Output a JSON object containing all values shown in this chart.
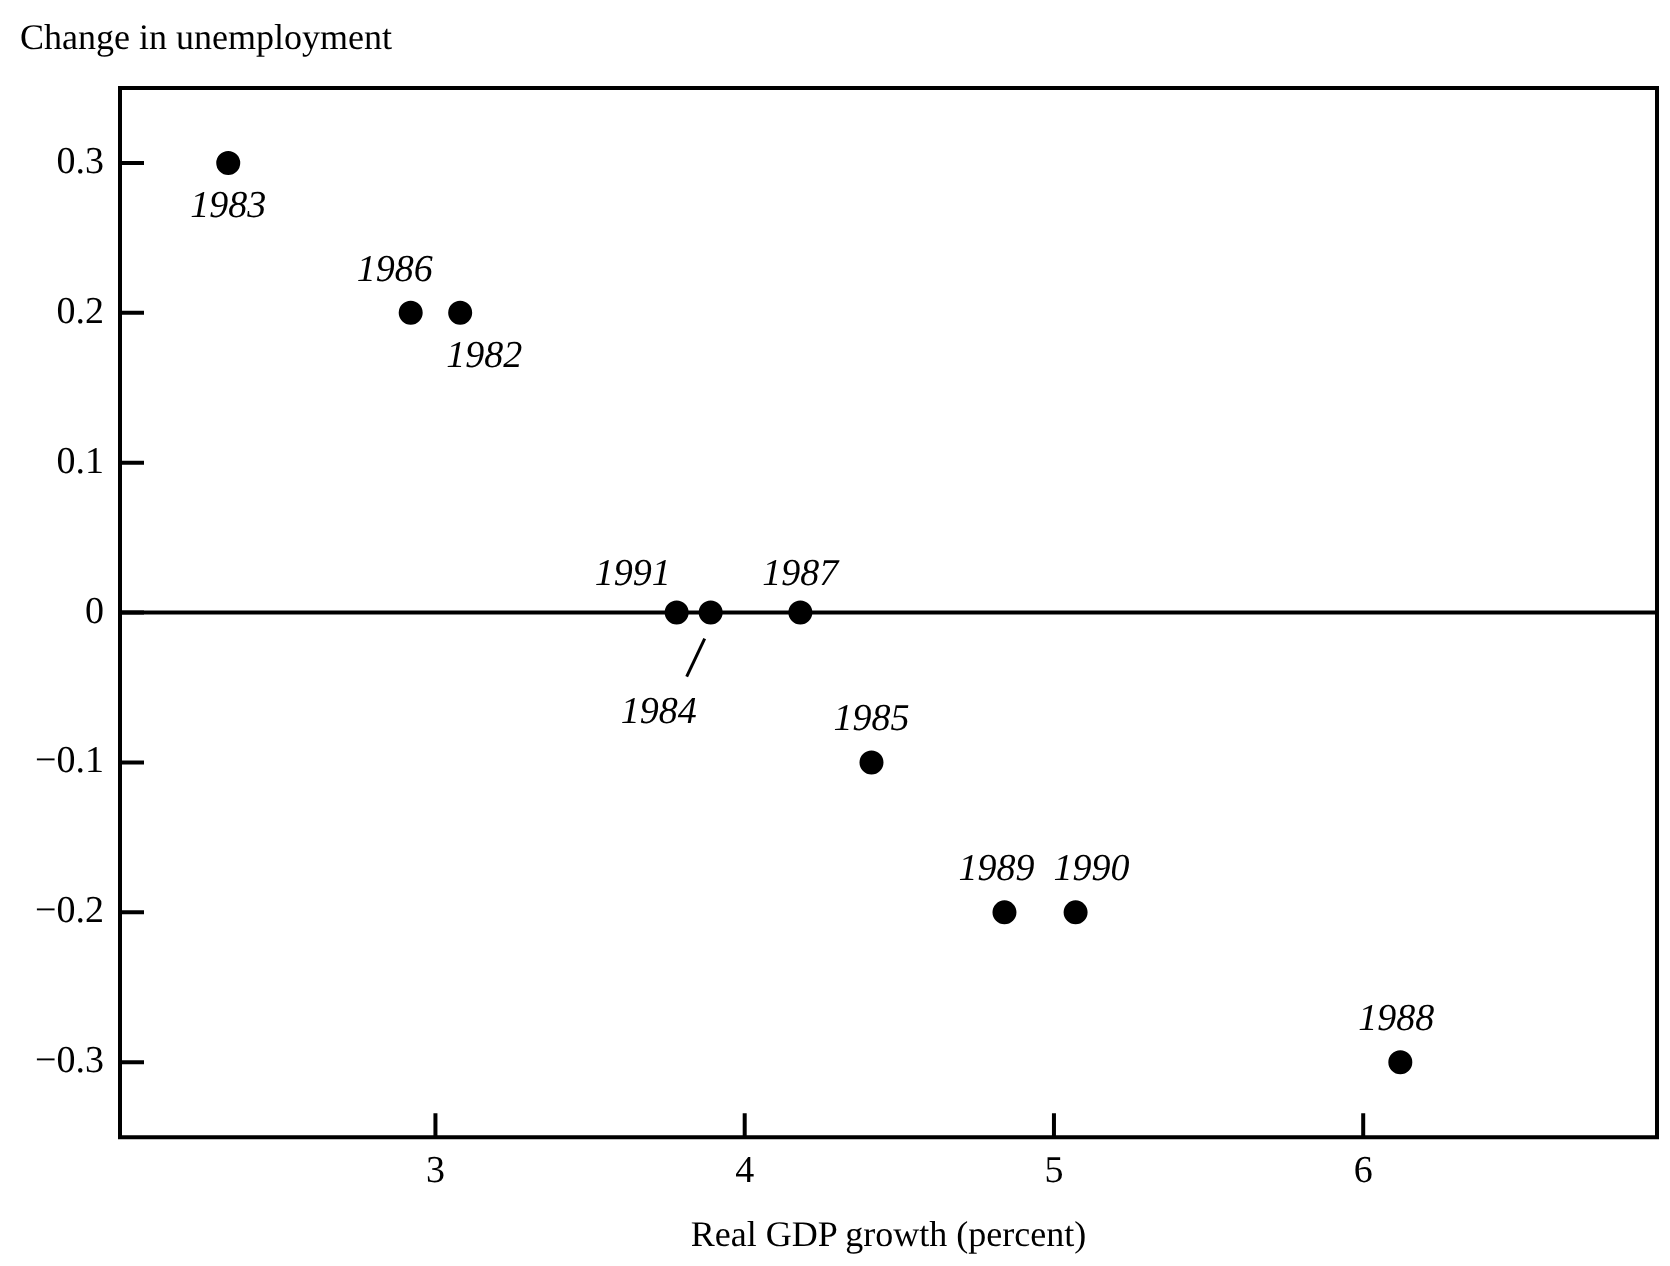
{
  "chart_data": {
    "type": "scatter",
    "xlabel": "Real GDP growth (percent)",
    "ylabel": "Change in unemployment",
    "x": [
      2.33,
      2.92,
      3.08,
      3.78,
      3.89,
      4.18,
      4.41,
      4.84,
      5.07,
      6.12
    ],
    "values": [
      0.3,
      0.2,
      0.2,
      0,
      0,
      0,
      -0.1,
      -0.2,
      -0.2,
      -0.3
    ],
    "color": "#000000",
    "marker": "circle",
    "xlim": [
      1.98,
      6.95
    ],
    "xticks": [
      3,
      4,
      5,
      6
    ],
    "ylim": [
      -0.35,
      0.35
    ],
    "yticks": [
      {
        "value": -0.3,
        "label": "−0.3"
      },
      {
        "value": -0.2,
        "label": "−0.2"
      },
      {
        "value": -0.1,
        "label": "−0.1"
      },
      0,
      0.1,
      0.2,
      0.3
    ],
    "ref_lines": [
      {
        "axis": "y",
        "value": 0,
        "color": "#000000"
      }
    ],
    "annotations": [
      {
        "text": "1983",
        "x": 2.33,
        "y": 0.3
      },
      {
        "text": "1986",
        "x": 2.92,
        "y": 0.2
      },
      {
        "text": "1982",
        "x": 3.08,
        "y": 0.2
      },
      {
        "text": "1991",
        "x": 3.78,
        "y": 0
      },
      {
        "text": "1984",
        "x": 3.89,
        "y": 0
      },
      {
        "text": "1987",
        "x": 4.18,
        "y": 0
      },
      {
        "text": "1985",
        "x": 4.41,
        "y": -0.1
      },
      {
        "text": "1989",
        "x": 4.84,
        "y": -0.2
      },
      {
        "text": "1990",
        "x": 5.07,
        "y": -0.2
      },
      {
        "text": "1988",
        "x": 6.12,
        "y": -0.3
      }
    ],
    "grid": false,
    "legend": false
  }
}
